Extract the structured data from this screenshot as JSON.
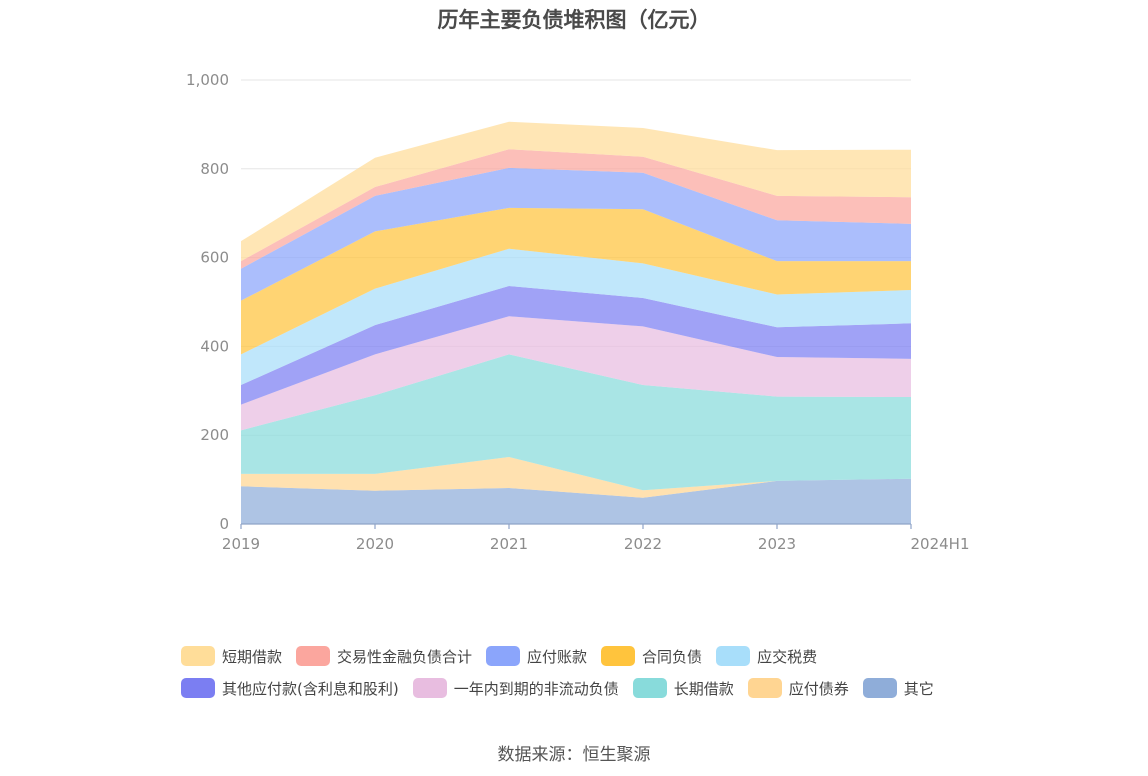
{
  "title": "历年主要负债堆积图（亿元）",
  "source": "数据来源：恒生聚源",
  "chart_data": {
    "type": "area",
    "stacked": true,
    "categories": [
      "2019",
      "2020",
      "2021",
      "2022",
      "2023",
      "2024H1"
    ],
    "ylim": [
      0,
      1000
    ],
    "yticks": [
      0,
      200,
      400,
      600,
      800,
      1000
    ],
    "ytick_labels": [
      "0",
      "200",
      "400",
      "600",
      "800",
      "1,000"
    ],
    "legend_position": "bottom",
    "series": [
      {
        "name": "其它",
        "color": "#8fadd9",
        "values": [
          85,
          75,
          81,
          59,
          97,
          102
        ]
      },
      {
        "name": "应付债券",
        "color": "#ffd592",
        "values": [
          28,
          38,
          70,
          17,
          0,
          0
        ]
      },
      {
        "name": "长期借款",
        "color": "#88dbdb",
        "values": [
          98,
          177,
          231,
          237,
          190,
          184
        ]
      },
      {
        "name": "一年内到期的非流动负债",
        "color": "#e8bde0",
        "values": [
          58,
          92,
          86,
          132,
          89,
          86
        ]
      },
      {
        "name": "其他应付款(含利息和股利)",
        "color": "#7b7ef2",
        "values": [
          44,
          66,
          68,
          64,
          67,
          80
        ]
      },
      {
        "name": "应交税费",
        "color": "#a8defa",
        "values": [
          69,
          82,
          84,
          78,
          74,
          75
        ]
      },
      {
        "name": "合同负债",
        "color": "#ffc43d",
        "values": [
          121,
          129,
          92,
          122,
          75,
          65
        ]
      },
      {
        "name": "应付账款",
        "color": "#8ba5fb",
        "values": [
          72,
          80,
          90,
          82,
          92,
          84
        ]
      },
      {
        "name": "交易性金融负债合计",
        "color": "#fba69e",
        "values": [
          17,
          20,
          42,
          36,
          55,
          60
        ]
      },
      {
        "name": "短期借款",
        "color": "#ffdd99",
        "values": [
          45,
          66,
          62,
          65,
          103,
          107
        ]
      }
    ]
  },
  "legend": {
    "row1": [
      {
        "label": "短期借款",
        "color": "#ffdd99"
      },
      {
        "label": "交易性金融负债合计",
        "color": "#fba69e"
      },
      {
        "label": "应付账款",
        "color": "#8ba5fb"
      },
      {
        "label": "合同负债",
        "color": "#ffc43d"
      },
      {
        "label": "应交税费",
        "color": "#a8defa"
      }
    ],
    "row2": [
      {
        "label": "其他应付款(含利息和股利)",
        "color": "#7b7ef2"
      },
      {
        "label": "一年内到期的非流动负债",
        "color": "#e8bde0"
      },
      {
        "label": "长期借款",
        "color": "#88dbdb"
      },
      {
        "label": "应付债券",
        "color": "#ffd592"
      },
      {
        "label": "其它",
        "color": "#8fadd9"
      }
    ]
  }
}
